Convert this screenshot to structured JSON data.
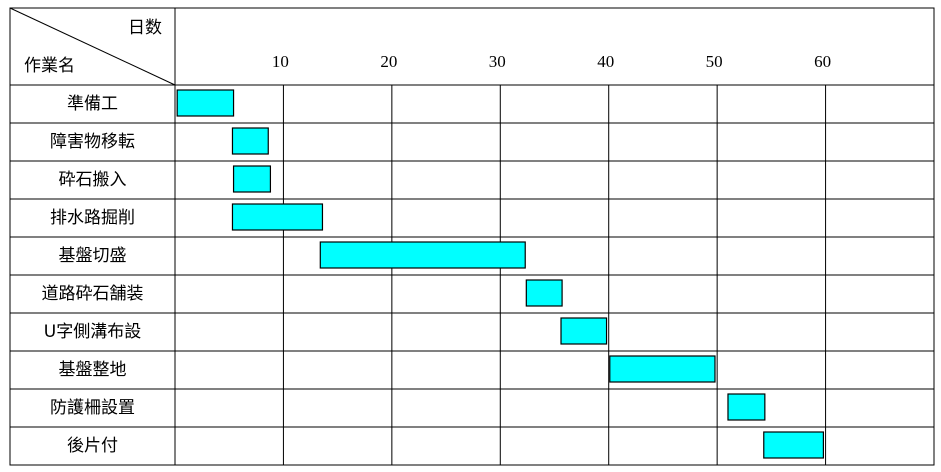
{
  "chart_data": {
    "type": "gantt",
    "value_header": "日数",
    "category_header": "作業名",
    "categories": [
      "準備工",
      "障害物移転",
      "砕石搬入",
      "排水路掘削",
      "基盤切盛",
      "道路砕石舗装",
      "U字側溝布設",
      "基盤整地",
      "防護柵設置",
      "後片付"
    ],
    "start": [
      0.2,
      5.3,
      5.4,
      5.3,
      13.4,
      32.4,
      35.6,
      40.1,
      51,
      54.3
    ],
    "end": [
      5.4,
      8.6,
      8.8,
      13.6,
      32.3,
      35.7,
      39.8,
      49.8,
      54.4,
      59.8
    ],
    "color": "#00ffff",
    "xlim": [
      0,
      70
    ],
    "xticks": [
      10,
      20,
      30,
      40,
      50,
      60
    ],
    "grid": true
  }
}
